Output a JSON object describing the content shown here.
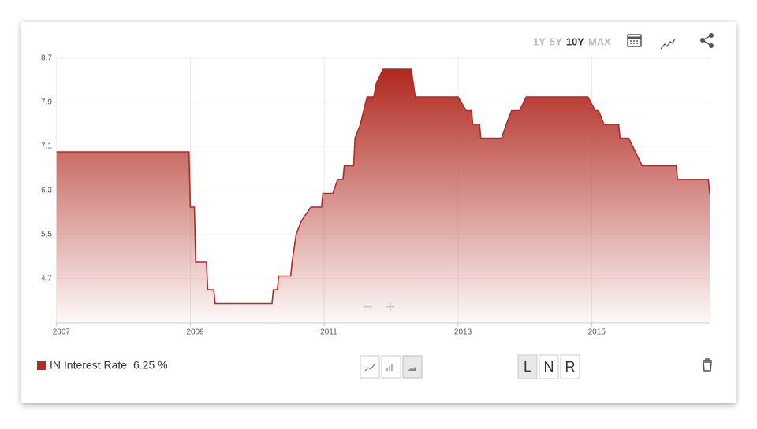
{
  "chart_data": {
    "type": "area",
    "x": [
      2007,
      2008.98,
      2009.0,
      2009.06,
      2009.08,
      2009.24,
      2009.26,
      2009.35,
      2009.37,
      2010.22,
      2010.24,
      2010.3,
      2010.32,
      2010.5,
      2010.52,
      2010.58,
      2010.66,
      2010.8,
      2010.96,
      2010.98,
      2011.13,
      2011.2,
      2011.28,
      2011.3,
      2011.44,
      2011.46,
      2011.54,
      2011.64,
      2011.74,
      2011.78,
      2011.88,
      2012.3,
      2012.36,
      2013.0,
      2013.12,
      2013.2,
      2013.22,
      2013.32,
      2013.34,
      2013.65,
      2013.72,
      2013.8,
      2013.92,
      2014.02,
      2014.94,
      2015.05,
      2015.1,
      2015.18,
      2015.4,
      2015.42,
      2015.55,
      2015.75,
      2016.26,
      2016.28,
      2016.74,
      2016.76
    ],
    "series": [
      {
        "name": "IN Interest Rate",
        "color": "#b22a22",
        "latest_label": "6.25 %",
        "values": [
          7.0,
          7.0,
          6.0,
          6.0,
          5.0,
          5.0,
          4.5,
          4.5,
          4.25,
          4.25,
          4.5,
          4.5,
          4.75,
          4.75,
          5.0,
          5.5,
          5.75,
          6.0,
          6.0,
          6.25,
          6.25,
          6.5,
          6.5,
          6.75,
          6.75,
          7.25,
          7.5,
          8.0,
          8.0,
          8.25,
          8.5,
          8.5,
          8.0,
          8.0,
          7.75,
          7.75,
          7.5,
          7.5,
          7.25,
          7.25,
          7.5,
          7.75,
          7.75,
          8.0,
          8.0,
          7.75,
          7.75,
          7.5,
          7.5,
          7.25,
          7.25,
          6.75,
          6.75,
          6.5,
          6.5,
          6.25
        ]
      }
    ],
    "xlim": [
      2006.98,
      2016.76
    ],
    "xticks": [
      2007,
      2009,
      2011,
      2013,
      2015
    ],
    "ylim": [
      3.9,
      8.7
    ],
    "yticks": [
      4.7,
      5.5,
      6.3,
      7.1,
      7.9,
      8.7
    ],
    "grid": true
  },
  "controls": {
    "ranges": [
      "1Y",
      "5Y",
      "10Y",
      "MAX"
    ],
    "active_range": 2,
    "zoom": [
      "−",
      "+"
    ],
    "scale_buttons": [
      "L",
      "N",
      "R"
    ]
  }
}
